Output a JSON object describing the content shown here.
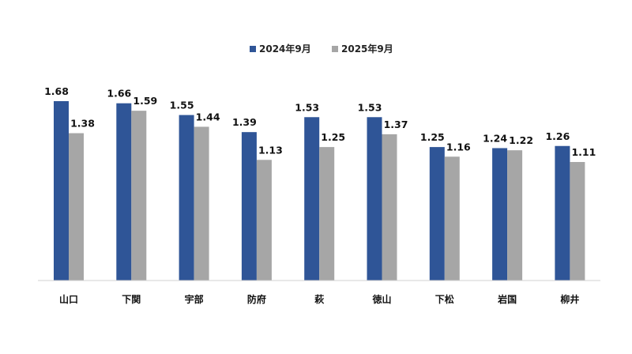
{
  "chart_data": {
    "type": "bar",
    "categories": [
      "山口",
      "下関",
      "宇部",
      "防府",
      "萩",
      "徳山",
      "下松",
      "岩国",
      "柳井"
    ],
    "series": [
      {
        "name": "2024年9月",
        "color": "#2f5597",
        "values": [
          1.68,
          1.66,
          1.55,
          1.39,
          1.53,
          1.53,
          1.25,
          1.24,
          1.26
        ],
        "labels": [
          "1.68",
          "1.66",
          "1.55",
          "1.39",
          "1.53",
          "1.53",
          "1.25",
          "1.24",
          "1.26"
        ]
      },
      {
        "name": "2025年9月",
        "color": "#a6a6a6",
        "values": [
          1.38,
          1.59,
          1.44,
          1.13,
          1.25,
          1.37,
          1.16,
          1.22,
          1.11
        ],
        "labels": [
          "1.38",
          "1.59",
          "1.44",
          "1.13",
          "1.25",
          "1.37",
          "1.16",
          "1.22",
          "1.11"
        ]
      }
    ],
    "ylim": [
      0,
      1.68
    ],
    "legend_position": "top-center",
    "grid": false
  }
}
